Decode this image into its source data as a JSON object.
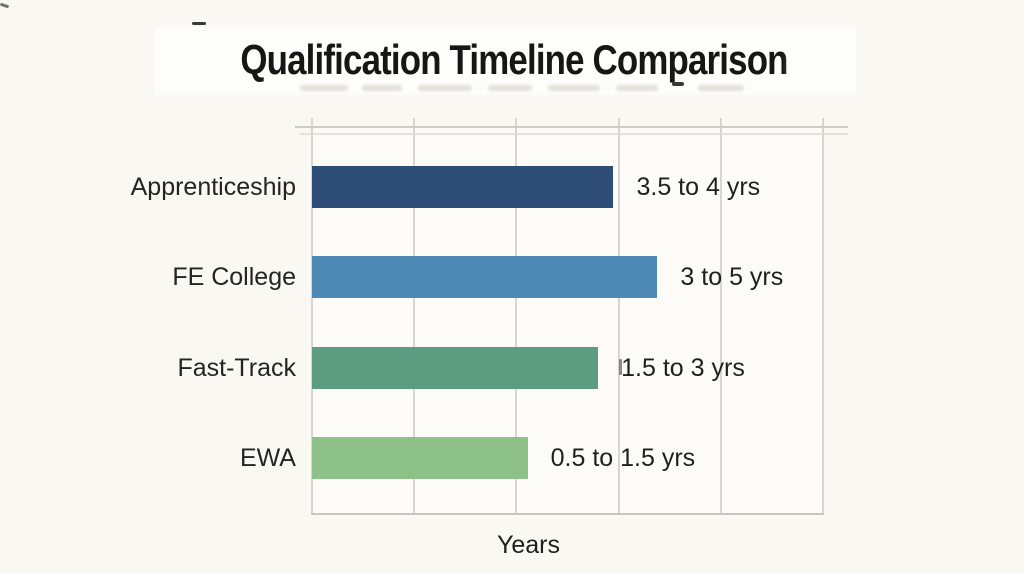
{
  "page": {
    "title": "Qualification Timeline Comparison",
    "x_axis_label": "Years"
  },
  "chart_data": {
    "type": "bar",
    "orientation": "horizontal",
    "title": "Qualification Timeline Comparison",
    "xlabel": "Years",
    "ylabel": "",
    "categories": [
      "Apprenticeship",
      "FE College",
      "Fast-Track",
      "EWA"
    ],
    "value_labels": [
      "3.5 to 4 yrs",
      "3 to 5 yrs",
      "1.5 to 3 yrs",
      "0.5 to 1.5 yrs"
    ],
    "ranges_years": [
      [
        3.5,
        4
      ],
      [
        3,
        5
      ],
      [
        1.5,
        3
      ],
      [
        0.5,
        1.5
      ]
    ],
    "bar_lengths_years": [
      2.95,
      3.38,
      2.8,
      2.11
    ],
    "bar_colors": [
      "#2e4d76",
      "#4f89b5",
      "#5e9c81",
      "#8dc188"
    ],
    "xlim": [
      0,
      5
    ],
    "gridline_count": 6,
    "grid": true,
    "legend": false
  },
  "colors": {
    "background": "#faf8f3",
    "title_panel": "#fdfdfc",
    "title_text": "#161616",
    "gridline": "#d8d5cd",
    "axis_line": "#c8c5bd",
    "label_text": "#201f1d"
  }
}
